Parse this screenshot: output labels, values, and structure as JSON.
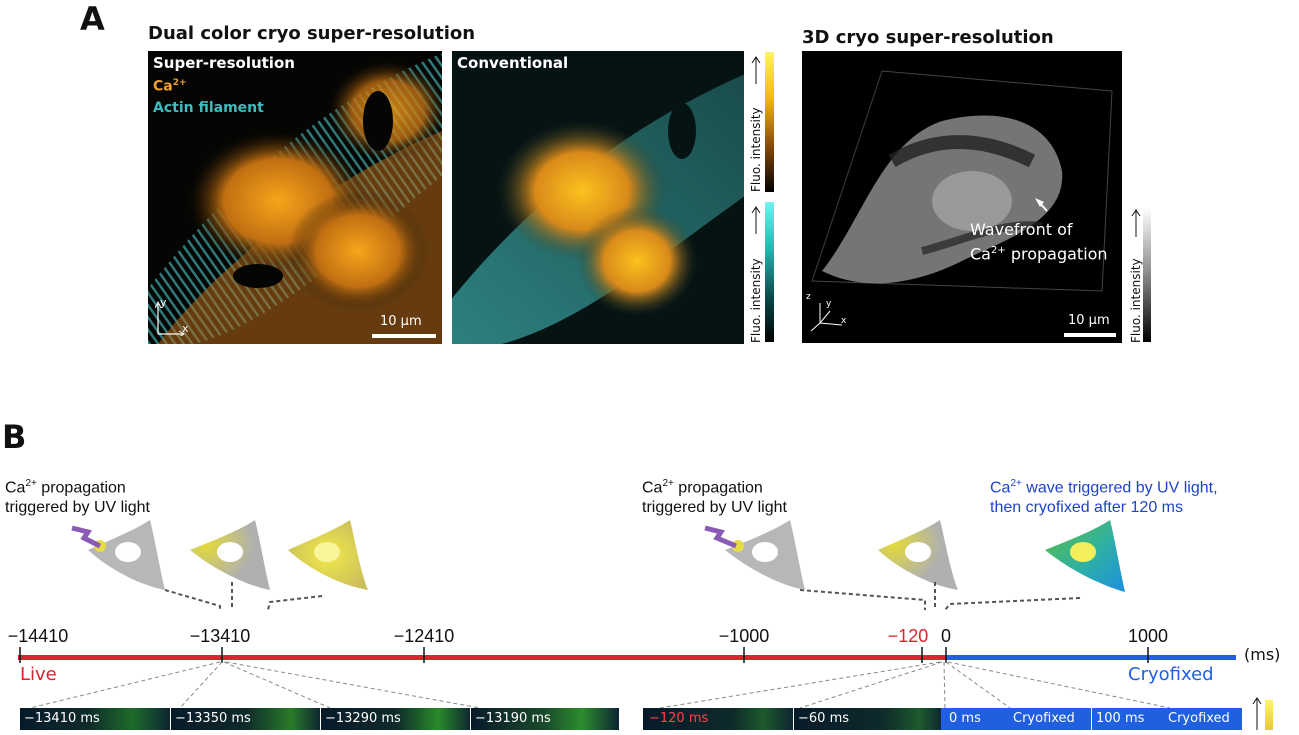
{
  "panel_a": {
    "letter": "A",
    "dual_title": "Dual color cryo super-resolution",
    "sr_label": "Super-resolution",
    "ca_label": "Ca",
    "ca_sup": "2+",
    "actin_label": "Actin filament",
    "conventional_label": "Conventional",
    "scale_bar_1": "10 µm",
    "axis_y": "y",
    "axis_x": "x",
    "fluo_label": "Fluo. intensity",
    "threed_title": "3D cryo super-resolution",
    "wavefront_line1": "Wavefront of",
    "wavefront_ca": "Ca",
    "wavefront_sup": "2+",
    "wavefront_rest": " propagation",
    "scale_bar_2": "10 µm",
    "axis3d_z": "z",
    "axis3d_y": "y",
    "axis3d_x": "x"
  },
  "panel_b": {
    "letter": "B",
    "annot_left_ca": "Ca",
    "annot_left_sup": "2+",
    "annot_left_rest": " propagation",
    "annot_left_line2": "triggered by UV light",
    "annot_mid_ca": "Ca",
    "annot_mid_sup": "2+",
    "annot_mid_rest": " propagation",
    "annot_mid_line2": "triggered by UV light",
    "annot_right_ca": "Ca",
    "annot_right_sup": "2+",
    "annot_right_rest": " wave triggered by UV light,",
    "annot_right_line2": "then cryofixed after 120 ms",
    "ticks": [
      {
        "label": "−14410",
        "color": "#111111"
      },
      {
        "label": "−13410",
        "color": "#111111"
      },
      {
        "label": "−12410",
        "color": "#111111"
      },
      {
        "label": "−1000",
        "color": "#111111"
      },
      {
        "label": "−120",
        "color": "#d8262f"
      },
      {
        "label": "0",
        "color": "#111111"
      },
      {
        "label": "1000",
        "color": "#111111"
      }
    ],
    "unit": "(ms)",
    "live_label": "Live",
    "cryo_label": "Cryofixed",
    "live_color": "#d8262f",
    "cryo_color": "#1f5fe0",
    "frames_left": [
      "−13410 ms",
      "−13350 ms",
      "−13290 ms",
      "−13190 ms"
    ],
    "frame_neg120": "−120 ms",
    "frame_neg60": "−60 ms",
    "frame_0": "0 ms",
    "frame_0_tag": "Cryofixed",
    "frame_100": "100 ms",
    "frame_100_tag": "Cryofixed"
  }
}
